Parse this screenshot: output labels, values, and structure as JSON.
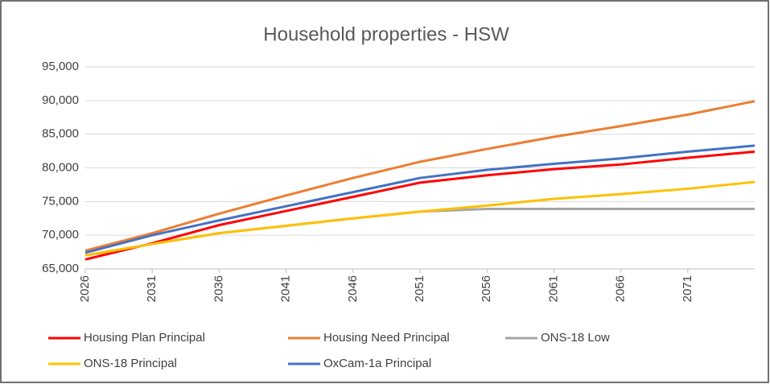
{
  "chart_data": {
    "type": "line",
    "title": "Household properties - HSW",
    "x": [
      2026,
      2031,
      2036,
      2041,
      2046,
      2051,
      2056,
      2061,
      2066,
      2071,
      2076
    ],
    "xlim": [
      2026,
      2076
    ],
    "xticks": [
      2026,
      2031,
      2036,
      2041,
      2046,
      2051,
      2056,
      2061,
      2066,
      2071
    ],
    "ylim": [
      65000,
      95000
    ],
    "yticks": [
      {
        "value": 65000,
        "label": "65,000"
      },
      {
        "value": 70000,
        "label": "70,000"
      },
      {
        "value": 75000,
        "label": "75,000"
      },
      {
        "value": 80000,
        "label": "80,000"
      },
      {
        "value": 85000,
        "label": "85,000"
      },
      {
        "value": 90000,
        "label": "90,000"
      },
      {
        "value": 95000,
        "label": "95,000"
      }
    ],
    "grid": true,
    "legend": "bottom",
    "series": [
      {
        "name": "Housing Plan Principal",
        "color": "#ff0000",
        "values": [
          66400,
          68800,
          71500,
          73600,
          75700,
          77800,
          78900,
          79800,
          80500,
          81500,
          82400
        ]
      },
      {
        "name": "Housing Need Principal",
        "color": "#ed7d31",
        "values": [
          67700,
          70300,
          73200,
          75900,
          78500,
          80900,
          82800,
          84600,
          86200,
          87900,
          89900
        ]
      },
      {
        "name": "ONS-18 Low",
        "color": "#a5a5a5",
        "values": [
          67000,
          68700,
          70300,
          71400,
          72500,
          73500,
          73900,
          73900,
          73900,
          73900,
          73900
        ]
      },
      {
        "name": "ONS-18 Principal",
        "color": "#ffc000",
        "values": [
          67000,
          68700,
          70300,
          71400,
          72500,
          73500,
          74400,
          75400,
          76100,
          76900,
          77900
        ]
      },
      {
        "name": "OxCam-1a Principal",
        "color": "#4472c4",
        "values": [
          67400,
          70000,
          72200,
          74300,
          76400,
          78500,
          79700,
          80600,
          81400,
          82400,
          83300
        ]
      }
    ]
  }
}
